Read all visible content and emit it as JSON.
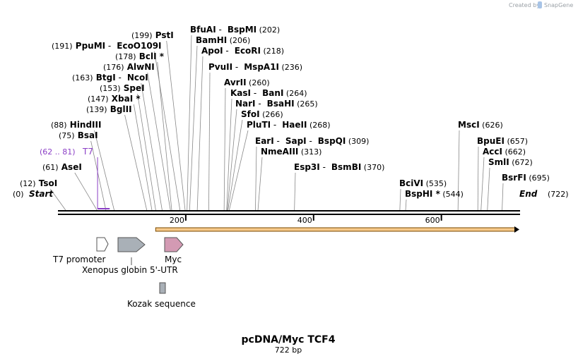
{
  "watermark": {
    "text": "Created by",
    "brand": "SnapGene"
  },
  "map": {
    "length": 722,
    "scale_start": 0,
    "scale_end": 722,
    "ticks": [
      {
        "value": 200,
        "label": "200"
      },
      {
        "value": 400,
        "label": "400"
      },
      {
        "value": 600,
        "label": "600"
      }
    ]
  },
  "start_label": {
    "pos": "(0)",
    "name": "Start"
  },
  "end_label": {
    "name": "End",
    "pos": "(722)"
  },
  "sites": [
    {
      "id": "TsoI",
      "parts": [
        {
          "t": "(12)",
          "k": "pos"
        },
        {
          "t": "TsoI",
          "k": "name"
        }
      ],
      "pos": 12
    },
    {
      "id": "AseI",
      "parts": [
        {
          "t": "(61)",
          "k": "pos"
        },
        {
          "t": "AseI",
          "k": "name"
        }
      ],
      "pos": 61
    },
    {
      "id": "BsaI",
      "parts": [
        {
          "t": "(75)",
          "k": "pos"
        },
        {
          "t": "BsaI",
          "k": "name"
        }
      ],
      "pos": 75
    },
    {
      "id": "HindIII",
      "parts": [
        {
          "t": "(88)",
          "k": "pos"
        },
        {
          "t": "HindIII",
          "k": "name"
        }
      ],
      "pos": 88
    },
    {
      "id": "BglII",
      "parts": [
        {
          "t": "(139)",
          "k": "pos"
        },
        {
          "t": "BglII",
          "k": "name"
        }
      ],
      "pos": 139
    },
    {
      "id": "XbaI",
      "parts": [
        {
          "t": "(147)",
          "k": "pos"
        },
        {
          "t": "XbaI *",
          "k": "name"
        }
      ],
      "pos": 147
    },
    {
      "id": "SpeI",
      "parts": [
        {
          "t": "(153)",
          "k": "pos"
        },
        {
          "t": "SpeI",
          "k": "name"
        }
      ],
      "pos": 153
    },
    {
      "id": "BtgI-NcoI",
      "parts": [
        {
          "t": "(163)",
          "k": "pos"
        },
        {
          "t": "BtgI",
          "k": "name"
        },
        {
          "t": "-",
          "k": "sep"
        },
        {
          "t": "NcoI",
          "k": "name"
        }
      ],
      "pos": 163
    },
    {
      "id": "AlwNI",
      "parts": [
        {
          "t": "(176)",
          "k": "pos"
        },
        {
          "t": "AlwNI",
          "k": "name"
        }
      ],
      "pos": 176
    },
    {
      "id": "BclI",
      "parts": [
        {
          "t": "(178)",
          "k": "pos"
        },
        {
          "t": "BclI *",
          "k": "name"
        }
      ],
      "pos": 178
    },
    {
      "id": "PpuMI-EcoO109I",
      "parts": [
        {
          "t": "(191)",
          "k": "pos"
        },
        {
          "t": "PpuMI",
          "k": "name"
        },
        {
          "t": "-",
          "k": "sep"
        },
        {
          "t": "EcoO109I",
          "k": "name"
        }
      ],
      "pos": 191
    },
    {
      "id": "PstI",
      "parts": [
        {
          "t": "(199)",
          "k": "pos"
        },
        {
          "t": "PstI",
          "k": "name"
        }
      ],
      "pos": 199
    },
    {
      "id": "BfuAI-BspMI",
      "parts": [
        {
          "t": "BfuAI",
          "k": "name"
        },
        {
          "t": "-",
          "k": "sep"
        },
        {
          "t": "BspMI",
          "k": "name"
        },
        {
          "t": "(202)",
          "k": "pos"
        }
      ],
      "pos": 202
    },
    {
      "id": "BamHI",
      "parts": [
        {
          "t": "BamHI",
          "k": "name"
        },
        {
          "t": "(206)",
          "k": "pos"
        }
      ],
      "pos": 206
    },
    {
      "id": "ApoI-EcoRI",
      "parts": [
        {
          "t": "ApoI",
          "k": "name"
        },
        {
          "t": "-",
          "k": "sep"
        },
        {
          "t": "EcoRI",
          "k": "name"
        },
        {
          "t": "(218)",
          "k": "pos"
        }
      ],
      "pos": 218
    },
    {
      "id": "PvuII-MspA1I",
      "parts": [
        {
          "t": "PvuII",
          "k": "name"
        },
        {
          "t": "-",
          "k": "sep"
        },
        {
          "t": "MspA1I",
          "k": "name"
        },
        {
          "t": "(236)",
          "k": "pos"
        }
      ],
      "pos": 236
    },
    {
      "id": "AvrII",
      "parts": [
        {
          "t": "AvrII",
          "k": "name"
        },
        {
          "t": "(260)",
          "k": "pos"
        }
      ],
      "pos": 260
    },
    {
      "id": "KasI-BanI",
      "parts": [
        {
          "t": "KasI",
          "k": "name"
        },
        {
          "t": "-",
          "k": "sep"
        },
        {
          "t": "BanI",
          "k": "name"
        },
        {
          "t": "(264)",
          "k": "pos"
        }
      ],
      "pos": 264
    },
    {
      "id": "NarI-BsaHI",
      "parts": [
        {
          "t": "NarI",
          "k": "name"
        },
        {
          "t": "-",
          "k": "sep"
        },
        {
          "t": "BsaHI",
          "k": "name"
        },
        {
          "t": "(265)",
          "k": "pos"
        }
      ],
      "pos": 265
    },
    {
      "id": "SfoI",
      "parts": [
        {
          "t": "SfoI",
          "k": "name"
        },
        {
          "t": "(266)",
          "k": "pos"
        }
      ],
      "pos": 266
    },
    {
      "id": "PluTI-HaeII",
      "parts": [
        {
          "t": "PluTI",
          "k": "name"
        },
        {
          "t": "-",
          "k": "sep"
        },
        {
          "t": "HaeII",
          "k": "name"
        },
        {
          "t": "(268)",
          "k": "pos"
        }
      ],
      "pos": 268
    },
    {
      "id": "EarI-SapI-BspQI",
      "parts": [
        {
          "t": "EarI",
          "k": "name"
        },
        {
          "t": "-",
          "k": "sep"
        },
        {
          "t": "SapI",
          "k": "name"
        },
        {
          "t": "-",
          "k": "sep"
        },
        {
          "t": "BspQI",
          "k": "name"
        },
        {
          "t": "(309)",
          "k": "pos"
        }
      ],
      "pos": 309
    },
    {
      "id": "NmeAIII",
      "parts": [
        {
          "t": "NmeAIII",
          "k": "name"
        },
        {
          "t": "(313)",
          "k": "pos"
        }
      ],
      "pos": 313
    },
    {
      "id": "Esp3I-BsmBI",
      "parts": [
        {
          "t": "Esp3I",
          "k": "name"
        },
        {
          "t": "-",
          "k": "sep"
        },
        {
          "t": "BsmBI",
          "k": "name"
        },
        {
          "t": "(370)",
          "k": "pos"
        }
      ],
      "pos": 370
    },
    {
      "id": "BciVI",
      "parts": [
        {
          "t": "BciVI",
          "k": "name"
        },
        {
          "t": "(535)",
          "k": "pos"
        }
      ],
      "pos": 535
    },
    {
      "id": "BspHI",
      "parts": [
        {
          "t": "BspHI *",
          "k": "name"
        },
        {
          "t": "(544)",
          "k": "pos"
        }
      ],
      "pos": 544
    },
    {
      "id": "MscI",
      "parts": [
        {
          "t": "MscI",
          "k": "name"
        },
        {
          "t": "(626)",
          "k": "pos"
        }
      ],
      "pos": 626
    },
    {
      "id": "BpuEI",
      "parts": [
        {
          "t": "BpuEI",
          "k": "name"
        },
        {
          "t": "(657)",
          "k": "pos"
        }
      ],
      "pos": 657
    },
    {
      "id": "AccI",
      "parts": [
        {
          "t": "AccI",
          "k": "name"
        },
        {
          "t": "(662)",
          "k": "pos"
        }
      ],
      "pos": 662
    },
    {
      "id": "SmlI",
      "parts": [
        {
          "t": "SmlI",
          "k": "name"
        },
        {
          "t": "(672)",
          "k": "pos"
        }
      ],
      "pos": 672
    },
    {
      "id": "BsrFI",
      "parts": [
        {
          "t": "BsrFI",
          "k": "name"
        },
        {
          "t": "(695)",
          "k": "pos"
        }
      ],
      "pos": 695
    }
  ],
  "primer": {
    "range": "(62 .. 81)",
    "name": "T7",
    "start": 62,
    "end": 81,
    "color": "#8b3fc6"
  },
  "orf": {
    "start": 164,
    "end": 722,
    "color": "#f6c98a",
    "stroke": "#7a4a00"
  },
  "features": [
    {
      "id": "t7-promoter",
      "label": "T7 promoter",
      "color": "#ffffff"
    },
    {
      "id": "xenopus-utr",
      "label": "Xenopus globin 5'-UTR",
      "color": "#a9b0b7"
    },
    {
      "id": "myc",
      "label": "Myc",
      "color": "#d39ab3"
    },
    {
      "id": "kozak",
      "label": "Kozak sequence",
      "color": "#a9b0b7"
    }
  ],
  "title": "pcDNA/Myc TCF4",
  "subtitle": "722 bp"
}
